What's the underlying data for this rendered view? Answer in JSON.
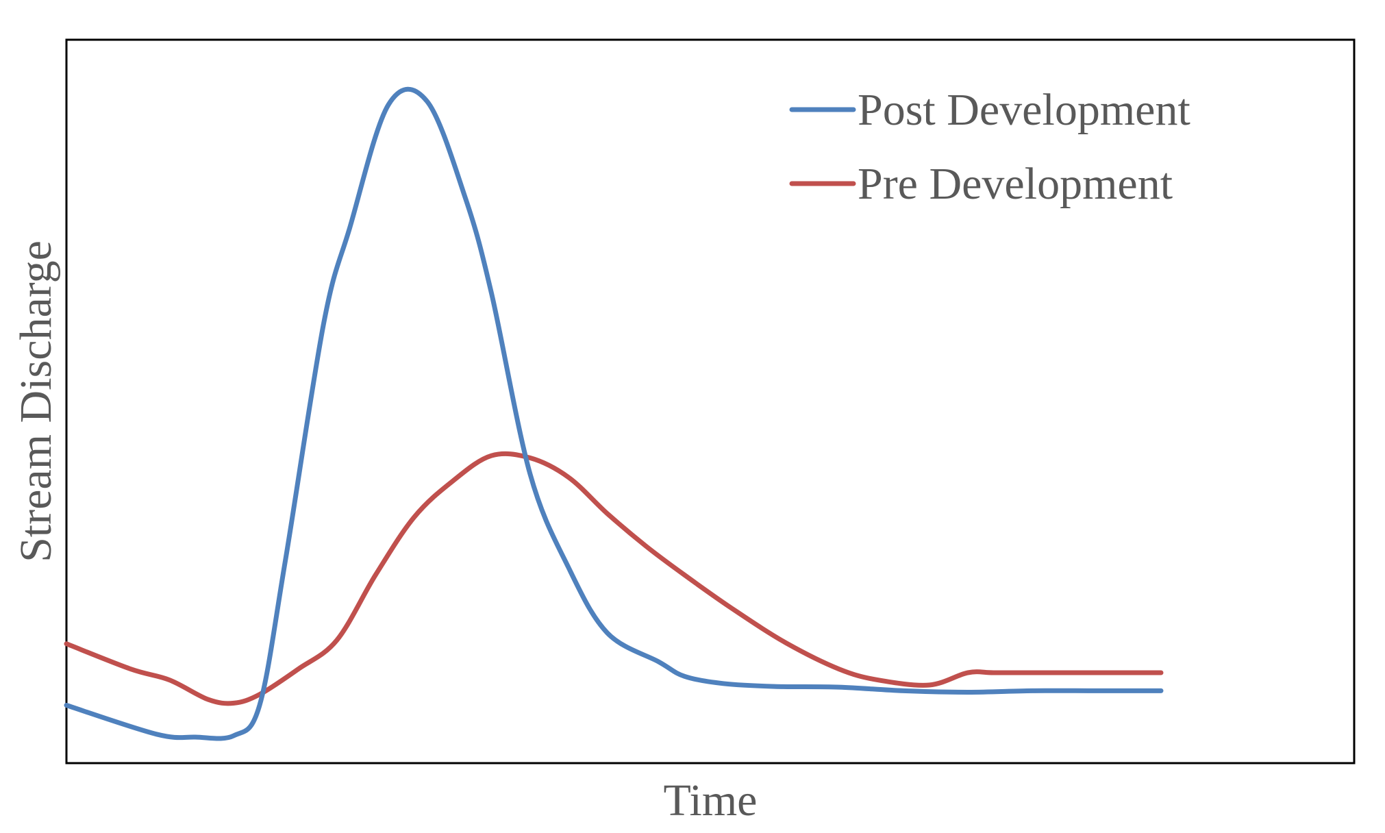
{
  "chart_data": {
    "type": "line",
    "title": "",
    "xlabel": "Time",
    "ylabel": "Stream Discharge",
    "xlim": [
      0,
      100
    ],
    "ylim": [
      0,
      100
    ],
    "grid": false,
    "legend": "top-right",
    "series": [
      {
        "name": "Post Development",
        "color": "#4f81bd",
        "x": [
          0,
          7,
          10,
          13,
          15,
          17,
          20,
          22,
          25,
          28,
          31,
          33,
          36,
          39,
          42,
          46,
          48,
          51,
          55,
          60,
          65,
          70,
          75,
          80,
          85
        ],
        "y": [
          8,
          4,
          3.6,
          3.8,
          8,
          28,
          61,
          74,
          91,
          91.5,
          78,
          65,
          40,
          27,
          18,
          14,
          12,
          11,
          10.6,
          10.5,
          10,
          9.8,
          10,
          10,
          10
        ]
      },
      {
        "name": "Pre Development",
        "color": "#c0504d",
        "x": [
          0,
          5,
          8,
          11,
          13,
          15,
          18,
          21,
          24,
          27,
          30,
          33,
          36,
          39,
          42,
          45,
          48,
          52,
          56,
          60,
          63,
          67,
          70,
          72,
          75,
          80,
          85
        ],
        "y": [
          16.5,
          13,
          11.5,
          8.8,
          8.3,
          9.5,
          13,
          17,
          26,
          34,
          39,
          42.5,
          42.2,
          39.5,
          34.5,
          30,
          26,
          21,
          16.5,
          13,
          11.5,
          10.8,
          12.5,
          12.5,
          12.5,
          12.5,
          12.5
        ]
      }
    ]
  }
}
